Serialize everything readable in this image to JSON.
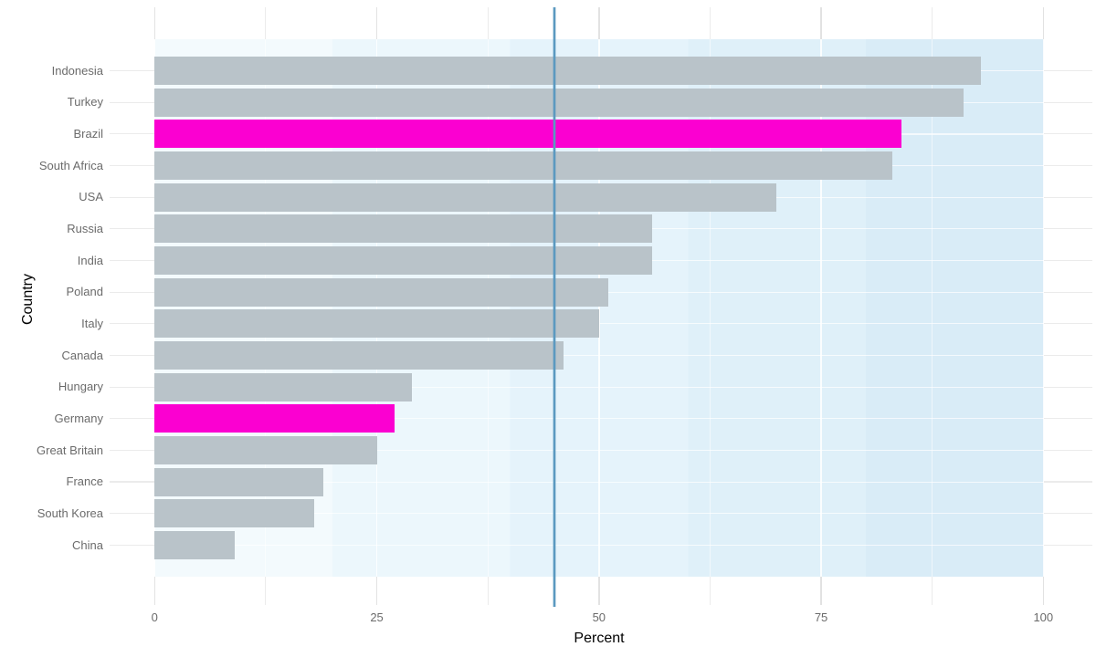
{
  "chart_data": {
    "type": "bar",
    "orientation": "horizontal",
    "title": "",
    "xlabel": "Percent",
    "ylabel": "Country",
    "xlim": [
      0,
      100
    ],
    "x_major_ticks": [
      {
        "label": "0",
        "value": 0
      },
      {
        "label": "25",
        "value": 25
      },
      {
        "label": "50",
        "value": 50
      },
      {
        "label": "75",
        "value": 75
      },
      {
        "label": "100",
        "value": 100
      }
    ],
    "x_minor_tick_values": [
      12.5,
      37.5,
      62.5,
      87.5
    ],
    "grid": "major and minor vertical gridlines; horizontal gridline per category",
    "legend": "none",
    "categories": [
      "Indonesia",
      "Turkey",
      "Brazil",
      "South Africa",
      "USA",
      "Russia",
      "India",
      "Poland",
      "Italy",
      "Canada",
      "Hungary",
      "Germany",
      "Great Britain",
      "France",
      "South Korea",
      "China"
    ],
    "values": [
      93,
      91,
      84,
      83,
      70,
      56,
      56,
      51,
      50,
      46,
      29,
      27,
      25,
      19,
      18,
      9
    ],
    "highlighted_categories": [
      "Brazil",
      "Germany"
    ],
    "reference_line_x": 45,
    "colors": {
      "bar_default": "#b9c3c9",
      "bar_highlight": "#fb00d1",
      "reference_line": "#5b99c0",
      "reference_line_halo": "rgba(91,153,192,0.35)",
      "panel_gradient_bands": [
        "#f3fafd",
        "#ecf7fc",
        "#e5f3fb",
        "#dff0f9",
        "#d9ecf7"
      ],
      "grid_major_outside": "#e2e2e2",
      "grid_minor_outside": "#ebebeb",
      "grid_major_on_panel": "rgba(255,255,255,0.85)",
      "grid_minor_on_panel": "rgba(255,255,255,0.55)",
      "row_grid_on_panel": "rgba(255,255,255,0.7)",
      "tick_label": "#6b6b6b",
      "axis_title": "#000000"
    }
  }
}
